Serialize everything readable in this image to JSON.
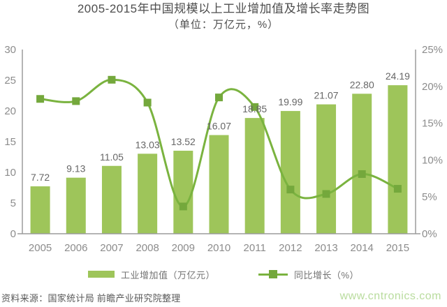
{
  "header": {
    "title": "2005-2015年中国规模以上工业增加值及增长率走势图",
    "subtitle": "（单位：万亿元，%）"
  },
  "chart_data": {
    "type": "bar",
    "subtype": "bar-line-combo",
    "categories": [
      "2005",
      "2006",
      "2007",
      "2008",
      "2009",
      "2010",
      "2011",
      "2012",
      "2013",
      "2014",
      "2015"
    ],
    "series": [
      {
        "name": "工业增加值（万亿元）",
        "type": "bar",
        "axis": "left",
        "values": [
          7.72,
          9.13,
          11.05,
          13.03,
          13.52,
          16.07,
          18.85,
          19.99,
          21.07,
          22.8,
          24.19
        ],
        "labels": [
          "7.72",
          "9.13",
          "11.05",
          "13.03",
          "13.52",
          "16.07",
          "18.85",
          "19.99",
          "21.07",
          "22.80",
          "24.19"
        ]
      },
      {
        "name": "同比增长（%）",
        "type": "line",
        "axis": "right",
        "values": [
          18.3,
          18.0,
          20.9,
          17.8,
          3.7,
          18.5,
          17.2,
          6.0,
          5.4,
          8.1,
          6.1
        ]
      }
    ],
    "title": "2005-2015年中国规模以上工业增加值及增长率走势图",
    "subtitle": "（单位：万亿元，%）",
    "xlabel": "",
    "ylabel_left": "万亿元",
    "ylabel_right": "%",
    "left_axis": {
      "min": 0,
      "max": 30,
      "ticks": [
        "0",
        "5",
        "10",
        "15",
        "20",
        "25",
        "30"
      ]
    },
    "right_axis": {
      "min": 0,
      "max": 25,
      "ticks": [
        "0%",
        "5%",
        "10%",
        "15%",
        "20%",
        "25%"
      ]
    },
    "grid": false,
    "legend_position": "bottom",
    "line_smooth": true
  },
  "legend": {
    "bar_label": "工业增加值（万亿元）",
    "line_label": "同比增长（%）"
  },
  "footer": {
    "source": "资料来源：国家统计局 前瞻产业研究院整理",
    "watermark": "www.cntronics.com"
  },
  "colors": {
    "bar": "#9ec55a",
    "line": "#7ab33f",
    "marker": "#74a83c",
    "axis": "#9b9b9b",
    "axis_text": "#8c8c8c",
    "bar_label": "#666666",
    "title": "#4d4d4d",
    "legend_text": "#737373",
    "source_text": "#595959",
    "watermark": "#b9dc9e"
  }
}
